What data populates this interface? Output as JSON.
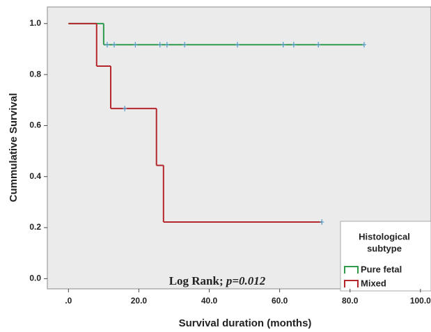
{
  "chart_data": {
    "type": "line",
    "x_label": "Survival duration (months)",
    "y_label": "Cummulative Survival",
    "xlim": [
      -6,
      103
    ],
    "ylim": [
      -0.04,
      1.065
    ],
    "xticks": [
      {
        "value": 0,
        "label": ".0"
      },
      {
        "value": 20,
        "label": "20.0"
      },
      {
        "value": 40,
        "label": "40.0"
      },
      {
        "value": 60,
        "label": "60.0"
      },
      {
        "value": 80,
        "label": "80.0"
      },
      {
        "value": 100,
        "label": "100.0"
      }
    ],
    "yticks": [
      {
        "value": 0,
        "label": "0.0"
      },
      0.2,
      0.4,
      0.6,
      0.8,
      {
        "value": 1,
        "label": "1.0"
      }
    ],
    "annotation": [
      "Log Rank; ",
      "p=0.012"
    ],
    "legend_title": [
      "Histological",
      "subtype"
    ],
    "legend_position": "lower right",
    "series": [
      {
        "name": "Pure fetal",
        "color": "#2e9a4a",
        "x": [
          0,
          10,
          84
        ],
        "values": [
          1.0,
          0.917,
          0.917
        ],
        "censored_x": [
          11,
          13,
          19,
          26,
          28,
          33,
          48,
          61,
          64,
          71,
          84
        ],
        "censored_values": [
          0.917,
          0.917,
          0.917,
          0.917,
          0.917,
          0.917,
          0.917,
          0.917,
          0.917,
          0.917,
          0.917
        ]
      },
      {
        "name": "Mixed",
        "color": "#b5262c",
        "x": [
          0,
          8,
          12,
          25,
          27,
          72
        ],
        "values": [
          1.0,
          0.833,
          0.667,
          0.444,
          0.222,
          0.222
        ],
        "censored_x": [
          16,
          72
        ],
        "censored_values": [
          0.667,
          0.222
        ]
      }
    ]
  }
}
